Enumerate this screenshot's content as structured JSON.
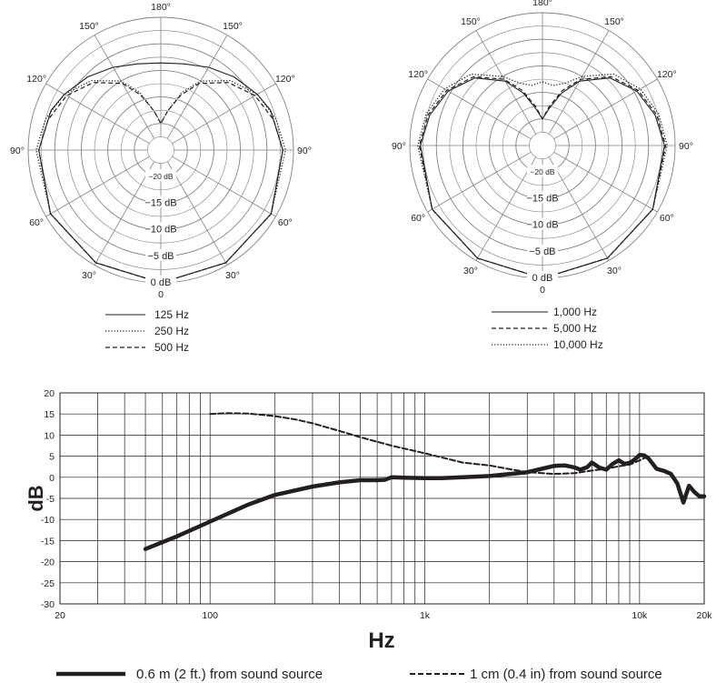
{
  "chart_data": [
    {
      "type": "polar",
      "angle_labels": [
        "180°",
        "150°",
        "150°",
        "120°",
        "120°",
        "90°",
        "90°",
        "60°",
        "60°",
        "30°",
        "30°",
        "0"
      ],
      "db_labels": [
        "−20 dB",
        "−15 dB",
        "−10 dB",
        "−5 dB",
        "0 dB"
      ],
      "rlim": [
        -25,
        0
      ],
      "series": [
        {
          "name": "125 Hz",
          "style": "solid",
          "angles": [
            0,
            30,
            60,
            90,
            110,
            120,
            135,
            150,
            165,
            180
          ],
          "values": [
            0,
            -0.5,
            -1,
            -2,
            -3,
            -4,
            -5.5,
            -7,
            -8.2,
            -8.6
          ]
        },
        {
          "name": "250 Hz",
          "style": "dotted",
          "angles": [
            0,
            30,
            60,
            90,
            105,
            120,
            135,
            150,
            160,
            170,
            180
          ],
          "values": [
            0,
            -0.5,
            -1,
            -1.5,
            -2.5,
            -4,
            -6.5,
            -10,
            -13.5,
            -17.5,
            -20
          ]
        },
        {
          "name": "500 Hz",
          "style": "dashed",
          "angles": [
            0,
            30,
            60,
            90,
            105,
            120,
            135,
            150,
            160,
            170,
            180
          ],
          "values": [
            0,
            -0.5,
            -1,
            -2,
            -3,
            -4.5,
            -7,
            -10.5,
            -14,
            -17.5,
            -20
          ]
        }
      ]
    },
    {
      "type": "polar",
      "angle_labels": [
        "180°",
        "150°",
        "150°",
        "120°",
        "120°",
        "90°",
        "90°",
        "60°",
        "60°",
        "30°",
        "30°",
        "0"
      ],
      "db_labels": [
        "−20 dB",
        "−15 dB",
        "−10 dB",
        "−5 dB",
        "0 dB"
      ],
      "rlim": [
        -25,
        0
      ],
      "series": [
        {
          "name": "1,000 Hz",
          "style": "solid",
          "angles": [
            0,
            30,
            60,
            90,
            105,
            120,
            135,
            150,
            160,
            170,
            180
          ],
          "values": [
            0,
            -0.5,
            -1,
            -2,
            -3,
            -4.5,
            -7,
            -11,
            -14.5,
            -18,
            -20
          ]
        },
        {
          "name": "5,000 Hz",
          "style": "dashed",
          "angles": [
            0,
            30,
            60,
            90,
            105,
            120,
            135,
            150,
            160,
            170,
            180
          ],
          "values": [
            0,
            -0.5,
            -1,
            -1.8,
            -2.7,
            -4.2,
            -6.7,
            -10.6,
            -14,
            -17.5,
            -20
          ]
        },
        {
          "name": "10,000 Hz",
          "style": "dotted",
          "angles": [
            0,
            30,
            60,
            90,
            105,
            120,
            135,
            150,
            160,
            170,
            180
          ],
          "values": [
            0,
            -0.5,
            -1,
            -1.5,
            -2.3,
            -3.7,
            -6,
            -10,
            -12.5,
            -13.5,
            -13
          ]
        }
      ]
    },
    {
      "type": "line",
      "xscale": "log",
      "xlim": [
        20,
        20000
      ],
      "ylim": [
        -30,
        20
      ],
      "xticks": [
        20,
        100,
        1000,
        10000,
        20000
      ],
      "xticklabels": [
        "20",
        "100",
        "1k",
        "10k",
        "20k"
      ],
      "yticks": [
        20,
        15,
        10,
        5,
        0,
        -5,
        -10,
        -15,
        -20,
        -25,
        -30
      ],
      "xlabel": "Hz",
      "ylabel": "dB",
      "series": [
        {
          "name": "0.6 m (2 ft.) from sound source",
          "style": "thick-solid",
          "x": [
            50,
            70,
            100,
            150,
            200,
            300,
            400,
            500,
            600,
            650,
            700,
            800,
            1000,
            1200,
            1500,
            2000,
            2500,
            3000,
            3500,
            4000,
            4500,
            5000,
            5300,
            5700,
            6000,
            6500,
            7000,
            7500,
            8000,
            8500,
            9000,
            9500,
            10000,
            10500,
            11000,
            12000,
            13000,
            14000,
            15000,
            16000,
            17000,
            18000,
            19000,
            20000
          ],
          "y": [
            -17,
            -14,
            -10.5,
            -6.5,
            -4.2,
            -2.2,
            -1.2,
            -0.7,
            -0.7,
            -0.6,
            0,
            -0.1,
            -0.2,
            -0.2,
            0,
            0.3,
            0.8,
            1.2,
            2,
            2.7,
            2.8,
            2.3,
            1.8,
            2.4,
            3.5,
            2.3,
            1.8,
            3.2,
            4,
            3.2,
            3.4,
            4.2,
            5.3,
            5.2,
            4.5,
            2,
            1.5,
            0.8,
            -1.5,
            -6,
            -2,
            -3.5,
            -4.5,
            -4.5
          ]
        },
        {
          "name": "1 cm (0.4 in) from sound source",
          "style": "dashed",
          "x": [
            100,
            120,
            150,
            200,
            250,
            300,
            400,
            500,
            700,
            1000,
            1500,
            2000,
            2500,
            3000,
            4000,
            5000,
            6000,
            7000,
            8000,
            9000,
            10000,
            11000
          ],
          "y": [
            15,
            15.2,
            15.1,
            14.5,
            13.7,
            12.8,
            11,
            9.5,
            7.5,
            5.7,
            3.5,
            2.8,
            1.9,
            1.2,
            0.8,
            1,
            1.6,
            2,
            2.6,
            3,
            4,
            5
          ]
        }
      ]
    }
  ]
}
